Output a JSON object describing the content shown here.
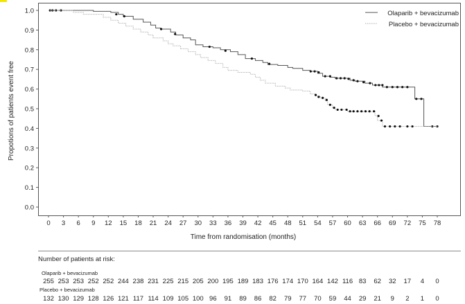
{
  "chart_data": {
    "type": "line",
    "subtype": "kaplan-meier",
    "xlabel": "Time from randomisation (months)",
    "ylabel": "Propotions of patients event free",
    "xlim": [
      0,
      78
    ],
    "ylim": [
      0,
      1
    ],
    "xticks": [
      0,
      3,
      6,
      9,
      12,
      15,
      18,
      21,
      24,
      27,
      30,
      33,
      36,
      39,
      42,
      45,
      48,
      51,
      54,
      57,
      60,
      63,
      66,
      69,
      72,
      75,
      78
    ],
    "yticks": [
      "0.0",
      "0.1",
      "0.2",
      "0.3",
      "0.4",
      "0.5",
      "0.6",
      "0.7",
      "0.8",
      "0.9",
      "1.0"
    ],
    "legend_position": "top-right",
    "series": [
      {
        "name": "Olaparib + bevacizumab",
        "style": "solid",
        "color": "#555555",
        "steps": [
          [
            0,
            1.0
          ],
          [
            9,
            0.995
          ],
          [
            12.5,
            0.99
          ],
          [
            14,
            0.98
          ],
          [
            15,
            0.97
          ],
          [
            17,
            0.955
          ],
          [
            19,
            0.94
          ],
          [
            20.5,
            0.925
          ],
          [
            21.5,
            0.91
          ],
          [
            22.5,
            0.905
          ],
          [
            24.5,
            0.89
          ],
          [
            25.5,
            0.875
          ],
          [
            27,
            0.86
          ],
          [
            28.5,
            0.85
          ],
          [
            29.5,
            0.825
          ],
          [
            31,
            0.815
          ],
          [
            33,
            0.81
          ],
          [
            34.5,
            0.8
          ],
          [
            36.5,
            0.79
          ],
          [
            38,
            0.775
          ],
          [
            39.5,
            0.755
          ],
          [
            41.5,
            0.745
          ],
          [
            43,
            0.735
          ],
          [
            44,
            0.725
          ],
          [
            46,
            0.72
          ],
          [
            48,
            0.71
          ],
          [
            49,
            0.705
          ],
          [
            51,
            0.695
          ],
          [
            52.5,
            0.69
          ],
          [
            54,
            0.68
          ],
          [
            55,
            0.665
          ],
          [
            56.5,
            0.66
          ],
          [
            57.5,
            0.655
          ],
          [
            60.5,
            0.645
          ],
          [
            61.5,
            0.64
          ],
          [
            63.5,
            0.63
          ],
          [
            65,
            0.62
          ],
          [
            67,
            0.61
          ],
          [
            73.5,
            0.55
          ],
          [
            75.3,
            0.41
          ],
          [
            78,
            0.41
          ]
        ],
        "censored": [
          [
            0.3,
            1.0
          ],
          [
            0.8,
            1.0
          ],
          [
            1.5,
            1.0
          ],
          [
            2.5,
            1.0
          ],
          [
            13.6,
            0.98
          ],
          [
            15.2,
            0.97
          ],
          [
            22.6,
            0.905
          ],
          [
            25.4,
            0.88
          ],
          [
            32.3,
            0.815
          ],
          [
            35.5,
            0.795
          ],
          [
            40.8,
            0.755
          ],
          [
            44.3,
            0.728
          ],
          [
            52.6,
            0.69
          ],
          [
            53.4,
            0.69
          ],
          [
            54.2,
            0.685
          ],
          [
            55.5,
            0.665
          ],
          [
            56.5,
            0.665
          ],
          [
            57.8,
            0.655
          ],
          [
            58.6,
            0.655
          ],
          [
            59.4,
            0.655
          ],
          [
            60.2,
            0.652
          ],
          [
            61.2,
            0.645
          ],
          [
            62,
            0.64
          ],
          [
            63.2,
            0.635
          ],
          [
            64.5,
            0.63
          ],
          [
            65.6,
            0.62
          ],
          [
            66.3,
            0.62
          ],
          [
            67,
            0.62
          ],
          [
            67.9,
            0.61
          ],
          [
            69,
            0.61
          ],
          [
            70,
            0.61
          ],
          [
            71,
            0.61
          ],
          [
            72,
            0.61
          ],
          [
            73.8,
            0.55
          ],
          [
            74.8,
            0.55
          ],
          [
            77,
            0.41
          ],
          [
            78,
            0.41
          ]
        ]
      },
      {
        "name": "Placebo + bevacizumab",
        "style": "dotted",
        "color": "#aaaaaa",
        "steps": [
          [
            0,
            1.0
          ],
          [
            5,
            0.99
          ],
          [
            7,
            0.98
          ],
          [
            11,
            0.965
          ],
          [
            12.5,
            0.95
          ],
          [
            14,
            0.935
          ],
          [
            15.5,
            0.92
          ],
          [
            17,
            0.905
          ],
          [
            18.5,
            0.89
          ],
          [
            20,
            0.875
          ],
          [
            21,
            0.86
          ],
          [
            23,
            0.845
          ],
          [
            24,
            0.83
          ],
          [
            25,
            0.82
          ],
          [
            26.5,
            0.805
          ],
          [
            28,
            0.79
          ],
          [
            29.5,
            0.775
          ],
          [
            30.5,
            0.76
          ],
          [
            32,
            0.745
          ],
          [
            33.5,
            0.73
          ],
          [
            35,
            0.71
          ],
          [
            36,
            0.695
          ],
          [
            38,
            0.685
          ],
          [
            40.5,
            0.675
          ],
          [
            41.5,
            0.66
          ],
          [
            42.5,
            0.645
          ],
          [
            43.5,
            0.63
          ],
          [
            45.5,
            0.615
          ],
          [
            47.5,
            0.605
          ],
          [
            48.5,
            0.595
          ],
          [
            51,
            0.59
          ],
          [
            52.5,
            0.575
          ],
          [
            53.5,
            0.565
          ],
          [
            54.5,
            0.555
          ],
          [
            55.5,
            0.54
          ],
          [
            56,
            0.52
          ],
          [
            57,
            0.505
          ],
          [
            57.5,
            0.495
          ],
          [
            60,
            0.485
          ],
          [
            65.5,
            0.465
          ],
          [
            66,
            0.44
          ],
          [
            67,
            0.41
          ],
          [
            78,
            0.41
          ]
        ],
        "censored": [
          [
            53.6,
            0.57
          ],
          [
            54.2,
            0.56
          ],
          [
            55,
            0.555
          ],
          [
            55.8,
            0.545
          ],
          [
            56.5,
            0.52
          ],
          [
            57.3,
            0.505
          ],
          [
            58,
            0.495
          ],
          [
            58.8,
            0.495
          ],
          [
            59.8,
            0.495
          ],
          [
            60.5,
            0.487
          ],
          [
            61.2,
            0.487
          ],
          [
            62,
            0.487
          ],
          [
            62.8,
            0.487
          ],
          [
            63.6,
            0.487
          ],
          [
            64.4,
            0.487
          ],
          [
            65.3,
            0.487
          ],
          [
            66.2,
            0.463
          ],
          [
            66.8,
            0.44
          ],
          [
            67.5,
            0.41
          ],
          [
            68.5,
            0.41
          ],
          [
            69.5,
            0.41
          ],
          [
            70.5,
            0.41
          ],
          [
            72,
            0.41
          ],
          [
            73,
            0.41
          ]
        ]
      }
    ]
  },
  "risk_table": {
    "title": "Number of patients at risk:",
    "rows": [
      {
        "label": "Olaparib + bevacizumab",
        "values": [
          "255",
          "253",
          "253",
          "252",
          "252",
          "244",
          "238",
          "231",
          "225",
          "215",
          "205",
          "200",
          "195",
          "189",
          "183",
          "176",
          "174",
          "170",
          "164",
          "142",
          "116",
          "83",
          "62",
          "32",
          "17",
          "4",
          "0"
        ]
      },
      {
        "label": "Placebo + bevacizumab",
        "values": [
          "132",
          "130",
          "129",
          "128",
          "126",
          "121",
          "117",
          "114",
          "109",
          "105",
          "100",
          "96",
          "91",
          "89",
          "86",
          "82",
          "79",
          "77",
          "70",
          "59",
          "44",
          "29",
          "21",
          "9",
          "2",
          "1",
          "0"
        ]
      }
    ]
  }
}
